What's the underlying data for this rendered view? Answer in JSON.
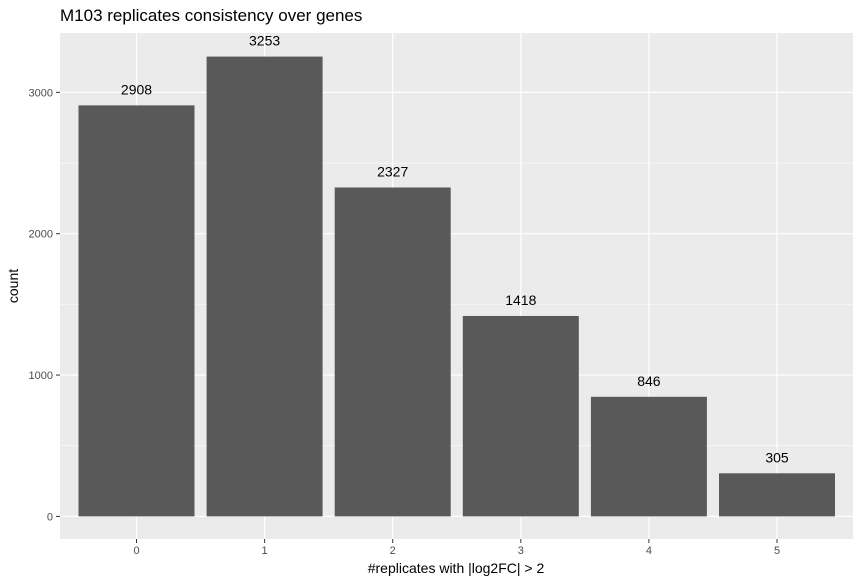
{
  "chart_data": {
    "type": "bar",
    "title": "M103 replicates consistency over genes",
    "xlabel": "#replicates with |log2FC| > 2",
    "ylabel": "count",
    "categories": [
      "0",
      "1",
      "2",
      "3",
      "4",
      "5"
    ],
    "values": [
      2908,
      3253,
      2327,
      1418,
      846,
      305
    ],
    "data_labels": [
      "2908",
      "3253",
      "2327",
      "1418",
      "846",
      "305"
    ],
    "y_ticks": [
      0,
      1000,
      2000,
      3000
    ],
    "ylim": [
      -160,
      3420
    ],
    "grid": true,
    "legend": "none",
    "colors": {
      "bar": "#595959",
      "panel_background": "#ebebeb",
      "grid_major": "#ffffff",
      "tick_text": "#4d4d4d"
    }
  }
}
